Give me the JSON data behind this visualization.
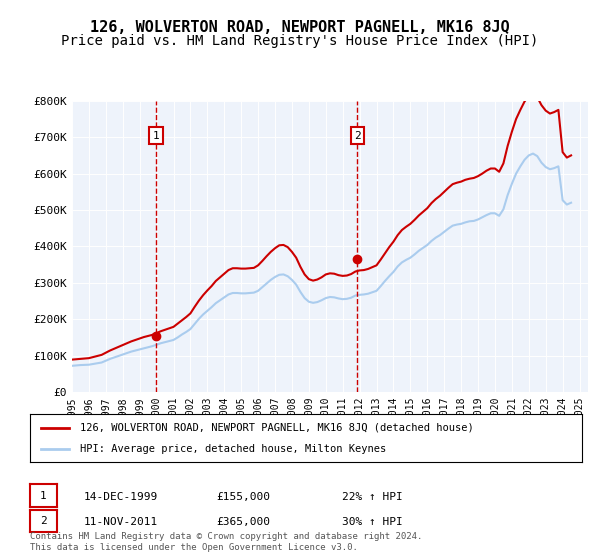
{
  "title": "126, WOLVERTON ROAD, NEWPORT PAGNELL, MK16 8JQ",
  "subtitle": "Price paid vs. HM Land Registry's House Price Index (HPI)",
  "title_fontsize": 11,
  "subtitle_fontsize": 10,
  "background_color": "#eef3fb",
  "plot_bg_color": "#eef3fb",
  "ylim": [
    0,
    800000
  ],
  "yticks": [
    0,
    100000,
    200000,
    300000,
    400000,
    500000,
    600000,
    700000,
    800000
  ],
  "ytick_labels": [
    "£0",
    "£100K",
    "£200K",
    "£300K",
    "£400K",
    "£500K",
    "£600K",
    "£700K",
    "£800K"
  ],
  "xlim_start": 1995.0,
  "xlim_end": 2025.5,
  "red_color": "#cc0000",
  "blue_color": "#aaccee",
  "transaction1_x": 1999.958,
  "transaction1_y": 155000,
  "transaction2_x": 2011.872,
  "transaction2_y": 365000,
  "legend_line1": "126, WOLVERTON ROAD, NEWPORT PAGNELL, MK16 8JQ (detached house)",
  "legend_line2": "HPI: Average price, detached house, Milton Keynes",
  "annotation1_date": "14-DEC-1999",
  "annotation1_price": "£155,000",
  "annotation1_hpi": "22% ↑ HPI",
  "annotation2_date": "11-NOV-2011",
  "annotation2_price": "£365,000",
  "annotation2_hpi": "30% ↑ HPI",
  "footer": "Contains HM Land Registry data © Crown copyright and database right 2024.\nThis data is licensed under the Open Government Licence v3.0.",
  "hpi_data_x": [
    1995.0,
    1995.25,
    1995.5,
    1995.75,
    1996.0,
    1996.25,
    1996.5,
    1996.75,
    1997.0,
    1997.25,
    1997.5,
    1997.75,
    1998.0,
    1998.25,
    1998.5,
    1998.75,
    1999.0,
    1999.25,
    1999.5,
    1999.75,
    2000.0,
    2000.25,
    2000.5,
    2000.75,
    2001.0,
    2001.25,
    2001.5,
    2001.75,
    2002.0,
    2002.25,
    2002.5,
    2002.75,
    2003.0,
    2003.25,
    2003.5,
    2003.75,
    2004.0,
    2004.25,
    2004.5,
    2004.75,
    2005.0,
    2005.25,
    2005.5,
    2005.75,
    2006.0,
    2006.25,
    2006.5,
    2006.75,
    2007.0,
    2007.25,
    2007.5,
    2007.75,
    2008.0,
    2008.25,
    2008.5,
    2008.75,
    2009.0,
    2009.25,
    2009.5,
    2009.75,
    2010.0,
    2010.25,
    2010.5,
    2010.75,
    2011.0,
    2011.25,
    2011.5,
    2011.75,
    2012.0,
    2012.25,
    2012.5,
    2012.75,
    2013.0,
    2013.25,
    2013.5,
    2013.75,
    2014.0,
    2014.25,
    2014.5,
    2014.75,
    2015.0,
    2015.25,
    2015.5,
    2015.75,
    2016.0,
    2016.25,
    2016.5,
    2016.75,
    2017.0,
    2017.25,
    2017.5,
    2017.75,
    2018.0,
    2018.25,
    2018.5,
    2018.75,
    2019.0,
    2019.25,
    2019.5,
    2019.75,
    2020.0,
    2020.25,
    2020.5,
    2020.75,
    2021.0,
    2021.25,
    2021.5,
    2021.75,
    2022.0,
    2022.25,
    2022.5,
    2022.75,
    2023.0,
    2023.25,
    2023.5,
    2023.75,
    2024.0,
    2024.25,
    2024.5
  ],
  "hpi_data_y": [
    72000,
    73000,
    74000,
    74500,
    75000,
    77000,
    79000,
    81000,
    86000,
    91000,
    95000,
    99000,
    103000,
    107000,
    111000,
    114000,
    117000,
    120000,
    123000,
    126000,
    130000,
    134000,
    137000,
    140000,
    143000,
    150000,
    158000,
    165000,
    173000,
    187000,
    201000,
    213000,
    223000,
    233000,
    244000,
    252000,
    260000,
    268000,
    272000,
    272000,
    271000,
    271000,
    272000,
    273000,
    278000,
    288000,
    298000,
    308000,
    316000,
    322000,
    323000,
    318000,
    308000,
    295000,
    275000,
    258000,
    248000,
    245000,
    247000,
    252000,
    258000,
    261000,
    260000,
    257000,
    255000,
    256000,
    259000,
    265000,
    267000,
    268000,
    270000,
    274000,
    278000,
    291000,
    305000,
    318000,
    330000,
    345000,
    356000,
    363000,
    369000,
    378000,
    388000,
    396000,
    404000,
    415000,
    424000,
    431000,
    440000,
    449000,
    457000,
    460000,
    462000,
    466000,
    469000,
    470000,
    474000,
    480000,
    486000,
    491000,
    491000,
    484000,
    502000,
    541000,
    572000,
    600000,
    620000,
    638000,
    650000,
    655000,
    648000,
    630000,
    618000,
    612000,
    615000,
    620000,
    527000,
    515000,
    520000
  ],
  "red_data_x": [
    1995.0,
    1995.25,
    1995.5,
    1995.75,
    1996.0,
    1996.25,
    1996.5,
    1996.75,
    1997.0,
    1997.25,
    1997.5,
    1997.75,
    1998.0,
    1998.25,
    1998.5,
    1998.75,
    1999.0,
    1999.25,
    1999.5,
    1999.75,
    2000.0,
    2000.25,
    2000.5,
    2000.75,
    2001.0,
    2001.25,
    2001.5,
    2001.75,
    2002.0,
    2002.25,
    2002.5,
    2002.75,
    2003.0,
    2003.25,
    2003.5,
    2003.75,
    2004.0,
    2004.25,
    2004.5,
    2004.75,
    2005.0,
    2005.25,
    2005.5,
    2005.75,
    2006.0,
    2006.25,
    2006.5,
    2006.75,
    2007.0,
    2007.25,
    2007.5,
    2007.75,
    2008.0,
    2008.25,
    2008.5,
    2008.75,
    2009.0,
    2009.25,
    2009.5,
    2009.75,
    2010.0,
    2010.25,
    2010.5,
    2010.75,
    2011.0,
    2011.25,
    2011.5,
    2011.75,
    2012.0,
    2012.25,
    2012.5,
    2012.75,
    2013.0,
    2013.25,
    2013.5,
    2013.75,
    2014.0,
    2014.25,
    2014.5,
    2014.75,
    2015.0,
    2015.25,
    2015.5,
    2015.75,
    2016.0,
    2016.25,
    2016.5,
    2016.75,
    2017.0,
    2017.25,
    2017.5,
    2017.75,
    2018.0,
    2018.25,
    2018.5,
    2018.75,
    2019.0,
    2019.25,
    2019.5,
    2019.75,
    2020.0,
    2020.25,
    2020.5,
    2020.75,
    2021.0,
    2021.25,
    2021.5,
    2021.75,
    2022.0,
    2022.25,
    2022.5,
    2022.75,
    2023.0,
    2023.25,
    2023.5,
    2023.75,
    2024.0,
    2024.25,
    2024.5
  ],
  "red_data_y": [
    89000,
    90000,
    91000,
    92000,
    93000,
    96000,
    99000,
    102000,
    108000,
    114000,
    119000,
    124000,
    129000,
    134000,
    139000,
    143000,
    147000,
    151000,
    154000,
    157000,
    162000,
    167000,
    171000,
    175000,
    179000,
    188000,
    197000,
    206000,
    216000,
    234000,
    251000,
    266000,
    279000,
    291000,
    305000,
    315000,
    325000,
    335000,
    340000,
    340000,
    339000,
    339000,
    340000,
    341000,
    348000,
    360000,
    373000,
    385000,
    395000,
    403000,
    404000,
    398000,
    385000,
    369000,
    344000,
    323000,
    310000,
    306000,
    309000,
    315000,
    323000,
    326000,
    325000,
    321000,
    319000,
    320000,
    324000,
    331000,
    334000,
    335000,
    338000,
    343000,
    348000,
    364000,
    381000,
    398000,
    413000,
    431000,
    445000,
    454000,
    462000,
    473000,
    485000,
    495000,
    505000,
    519000,
    530000,
    539000,
    550000,
    561000,
    571000,
    575000,
    578000,
    583000,
    586000,
    588000,
    593000,
    600000,
    608000,
    614000,
    614000,
    605000,
    628000,
    676000,
    715000,
    750000,
    775000,
    798000,
    813000,
    819000,
    810000,
    788000,
    773000,
    765000,
    769000,
    775000,
    659000,
    644000,
    650000
  ]
}
